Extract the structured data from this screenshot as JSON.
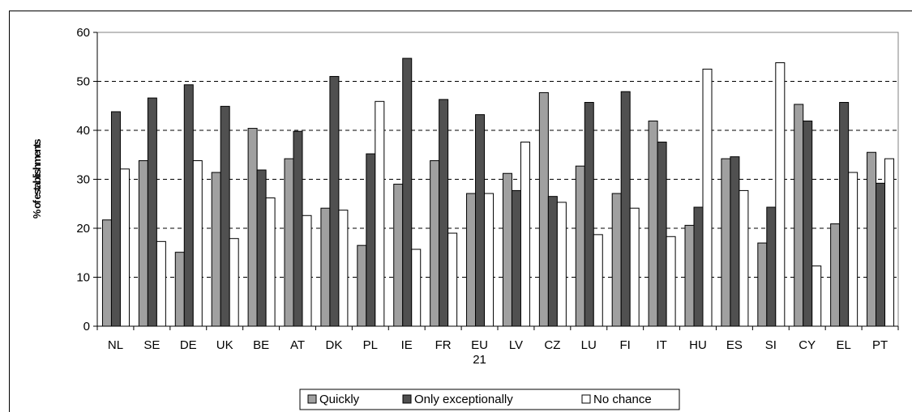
{
  "chart_data": {
    "type": "bar",
    "title": "",
    "xlabel": "",
    "ylabel": "% of establishments",
    "ylim": [
      0,
      60
    ],
    "yticks": [
      0,
      10,
      20,
      30,
      40,
      50,
      60
    ],
    "grid": "horizontal dashed",
    "legend": "bottom",
    "categories": [
      "NL",
      "SE",
      "DE",
      "UK",
      "BE",
      "AT",
      "DK",
      "PL",
      "IE",
      "FR",
      "EU\n21",
      "LV",
      "CZ",
      "LU",
      "FI",
      "IT",
      "HU",
      "ES",
      "SI",
      "CY",
      "EL",
      "PT"
    ],
    "series": [
      {
        "name": "Quickly",
        "color": "#a0a0a0",
        "values": [
          21.7,
          33.8,
          15.1,
          31.4,
          40.4,
          34.2,
          24.1,
          16.5,
          29.0,
          33.8,
          27.1,
          31.2,
          47.7,
          32.7,
          27.1,
          41.9,
          20.6,
          34.2,
          17.0,
          45.3,
          20.9,
          35.5
        ]
      },
      {
        "name": "Only exceptionally",
        "color": "#505050",
        "values": [
          43.8,
          46.6,
          49.3,
          44.9,
          31.9,
          39.8,
          51.0,
          35.2,
          54.7,
          46.3,
          43.2,
          27.7,
          26.5,
          45.7,
          47.9,
          37.6,
          24.3,
          34.6,
          24.3,
          41.9,
          45.7,
          29.2
        ]
      },
      {
        "name": "No chance",
        "color": "#ffffff",
        "values": [
          32.1,
          17.3,
          33.8,
          17.9,
          26.2,
          22.6,
          23.7,
          45.9,
          15.7,
          19.0,
          27.1,
          37.6,
          25.3,
          18.7,
          24.1,
          18.3,
          52.5,
          27.7,
          53.8,
          12.3,
          31.4,
          34.2
        ]
      }
    ]
  }
}
